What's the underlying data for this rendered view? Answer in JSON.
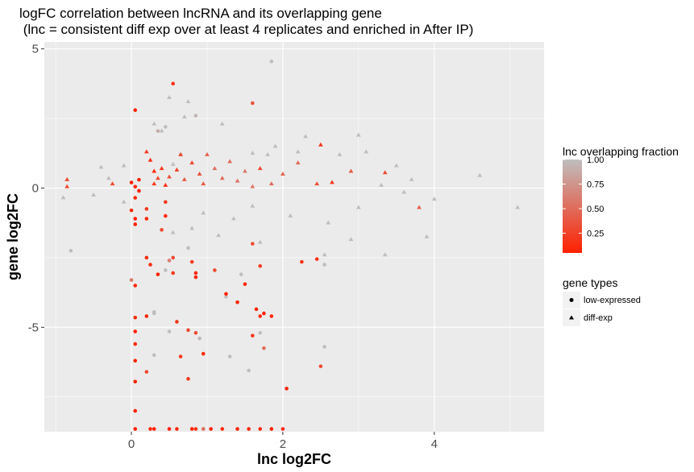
{
  "chart_data": {
    "type": "scatter",
    "title_line1": "logFC correlation between lncRNA and its overlapping gene",
    "title_line2": " (lnc = consistent diff exp over at least 4 replicates and enriched in After IP)",
    "xlabel": "lnc log2FC",
    "ylabel": "gene log2FC",
    "xlim": [
      -1.15,
      5.45
    ],
    "ylim": [
      -8.75,
      5.25
    ],
    "x_ticks": [
      0,
      2,
      4
    ],
    "y_ticks": [
      5,
      0,
      -5
    ],
    "grid": true,
    "color_legend": {
      "title": "lnc overlapping fraction",
      "ticks": [
        "1.00",
        "0.75",
        "0.50",
        "0.25"
      ],
      "tick_values": [
        1.0,
        0.75,
        0.5,
        0.25
      ],
      "range": [
        0.05,
        1.0
      ],
      "low_color": "#ff2000",
      "high_color": "#bebebe",
      "placement": "right"
    },
    "shape_legend": {
      "title": "gene types",
      "entries": [
        "low-expressed",
        "diff-exp"
      ]
    },
    "series": [
      {
        "name": "low-expressed",
        "shape": "circle",
        "points": [
          [
            0.05,
            2.8,
            0.05
          ],
          [
            0.55,
            3.75,
            0.15
          ],
          [
            1.6,
            3.05,
            0.35
          ],
          [
            1.85,
            4.55,
            1.0
          ],
          [
            0.35,
            2.05,
            0.9
          ],
          [
            0.45,
            2.2,
            1.0
          ],
          [
            0.85,
            2.6,
            0.95
          ],
          [
            0.1,
            0.3,
            0.05
          ],
          [
            0.0,
            0.2,
            0.05
          ],
          [
            0.05,
            0.05,
            0.1
          ],
          [
            0.1,
            -0.1,
            0.05
          ],
          [
            0.05,
            -0.35,
            0.1
          ],
          [
            0.0,
            -0.8,
            0.1
          ],
          [
            0.05,
            -1.1,
            0.05
          ],
          [
            0.05,
            -1.3,
            0.05
          ],
          [
            0.2,
            -0.75,
            0.2
          ],
          [
            0.2,
            -1.1,
            0.1
          ],
          [
            0.45,
            -0.5,
            0.2
          ],
          [
            0.45,
            -1.0,
            0.1
          ],
          [
            0.4,
            -1.5,
            0.3
          ],
          [
            0.2,
            -2.5,
            0.1
          ],
          [
            0.25,
            -2.75,
            0.15
          ],
          [
            0.35,
            -3.1,
            0.05
          ],
          [
            0.5,
            -2.6,
            0.6
          ],
          [
            0.55,
            -2.5,
            0.3
          ],
          [
            0.55,
            -3.05,
            0.2
          ],
          [
            0.8,
            -2.65,
            0.2
          ],
          [
            0.85,
            -3.05,
            0.1
          ],
          [
            0.85,
            -3.2,
            0.05
          ],
          [
            1.1,
            -2.95,
            0.3
          ],
          [
            1.25,
            -3.8,
            0.05
          ],
          [
            1.5,
            -3.45,
            0.1
          ],
          [
            1.4,
            -4.1,
            0.05
          ],
          [
            1.7,
            -2.8,
            0.2
          ],
          [
            1.6,
            -2.0,
            0.3
          ],
          [
            1.65,
            -4.35,
            0.05
          ],
          [
            1.7,
            -4.6,
            0.1
          ],
          [
            1.75,
            -4.5,
            0.05
          ],
          [
            1.85,
            -4.6,
            0.1
          ],
          [
            1.6,
            -5.3,
            0.2
          ],
          [
            1.75,
            -5.75,
            0.5
          ],
          [
            2.05,
            -7.2,
            0.05
          ],
          [
            2.25,
            -2.65,
            0.15
          ],
          [
            2.45,
            -2.55,
            0.15
          ],
          [
            2.55,
            -2.75,
            1.0
          ],
          [
            0.0,
            -3.3,
            0.6
          ],
          [
            0.05,
            -3.5,
            0.1
          ],
          [
            0.05,
            -4.65,
            0.1
          ],
          [
            0.05,
            -5.15,
            0.05
          ],
          [
            0.05,
            -5.6,
            0.1
          ],
          [
            0.05,
            -6.2,
            0.05
          ],
          [
            0.05,
            -6.95,
            0.05
          ],
          [
            0.05,
            -8.0,
            0.05
          ],
          [
            0.05,
            -8.65,
            0.05
          ],
          [
            0.2,
            -4.6,
            0.1
          ],
          [
            0.3,
            -4.5,
            1.0
          ],
          [
            0.2,
            -6.6,
            0.3
          ],
          [
            0.6,
            -4.8,
            0.2
          ],
          [
            0.65,
            -6.05,
            0.2
          ],
          [
            0.75,
            -6.85,
            0.2
          ],
          [
            0.75,
            -5.1,
            0.3
          ],
          [
            0.85,
            -5.2,
            0.3
          ],
          [
            0.95,
            -5.95,
            0.1
          ],
          [
            0.9,
            -5.4,
            0.95
          ],
          [
            2.5,
            -6.4,
            0.3
          ],
          [
            2.55,
            -5.7,
            1.0
          ],
          [
            0.25,
            -8.65,
            0.1
          ],
          [
            0.3,
            -8.65,
            0.05
          ],
          [
            0.5,
            -8.65,
            0.05
          ],
          [
            0.6,
            -8.65,
            0.1
          ],
          [
            0.8,
            -8.65,
            0.05
          ],
          [
            0.85,
            -8.65,
            0.15
          ],
          [
            1.05,
            -8.65,
            0.05
          ],
          [
            1.2,
            -8.65,
            0.1
          ],
          [
            1.4,
            -8.65,
            0.05
          ],
          [
            1.55,
            -8.65,
            0.1
          ],
          [
            1.7,
            -8.65,
            0.1
          ],
          [
            1.85,
            -8.65,
            0.05
          ],
          [
            2.0,
            -8.65,
            0.1
          ],
          [
            0.95,
            -8.65,
            0.5
          ],
          [
            -0.8,
            -2.25,
            1.0
          ],
          [
            0.45,
            -2.95,
            1.0
          ],
          [
            1.25,
            -3.9,
            1.0
          ],
          [
            0.3,
            -4.45,
            1.0
          ],
          [
            0.5,
            -5.15,
            1.0
          ],
          [
            0.3,
            -6.0,
            1.0
          ],
          [
            1.3,
            -6.05,
            1.0
          ],
          [
            1.55,
            -6.55,
            1.0
          ],
          [
            0.75,
            -2.15,
            1.0
          ],
          [
            1.45,
            -3.1,
            1.0
          ],
          [
            1.7,
            -5.2,
            1.0
          ],
          [
            0.65,
            1.2,
            1.0
          ]
        ]
      },
      {
        "name": "diff-exp",
        "shape": "triangle",
        "points": [
          [
            -0.85,
            0.3,
            0.3
          ],
          [
            -0.85,
            0.05,
            0.3
          ],
          [
            -0.9,
            -0.35,
            1.0
          ],
          [
            -0.5,
            -0.25,
            1.0
          ],
          [
            -0.4,
            0.75,
            1.0
          ],
          [
            -0.3,
            0.35,
            1.0
          ],
          [
            -0.25,
            0.15,
            0.3
          ],
          [
            -0.1,
            0.8,
            1.0
          ],
          [
            -0.1,
            -0.5,
            1.0
          ],
          [
            0.2,
            1.3,
            0.2
          ],
          [
            0.25,
            1.0,
            0.15
          ],
          [
            0.3,
            0.6,
            0.1
          ],
          [
            0.3,
            0.15,
            0.2
          ],
          [
            0.35,
            0.35,
            0.3
          ],
          [
            0.4,
            0.7,
            0.2
          ],
          [
            0.45,
            0.1,
            0.15
          ],
          [
            0.5,
            0.4,
            0.35
          ],
          [
            0.6,
            0.65,
            0.25
          ],
          [
            0.65,
            1.2,
            0.3
          ],
          [
            0.7,
            0.3,
            0.4
          ],
          [
            0.8,
            0.9,
            0.3
          ],
          [
            0.9,
            0.5,
            0.35
          ],
          [
            0.95,
            0.15,
            0.4
          ],
          [
            1.0,
            1.2,
            0.45
          ],
          [
            1.1,
            0.7,
            0.55
          ],
          [
            1.2,
            0.35,
            0.5
          ],
          [
            1.3,
            0.95,
            0.5
          ],
          [
            1.4,
            0.25,
            0.55
          ],
          [
            1.5,
            0.6,
            0.6
          ],
          [
            1.6,
            0.05,
            0.55
          ],
          [
            1.7,
            0.7,
            0.3
          ],
          [
            1.85,
            0.15,
            0.5
          ],
          [
            2.0,
            0.5,
            0.45
          ],
          [
            2.2,
            0.9,
            0.5
          ],
          [
            2.45,
            0.15,
            0.35
          ],
          [
            2.5,
            1.55,
            0.2
          ],
          [
            2.65,
            0.2,
            0.2
          ],
          [
            2.9,
            0.6,
            0.4
          ],
          [
            3.35,
            0.55,
            0.3
          ],
          [
            3.8,
            -0.7,
            0.45
          ],
          [
            0.3,
            2.3,
            1.0
          ],
          [
            0.7,
            2.55,
            1.0
          ],
          [
            1.2,
            2.3,
            1.0
          ],
          [
            0.75,
            3.1,
            1.0
          ],
          [
            0.5,
            3.25,
            1.0
          ],
          [
            0.4,
            2.05,
            1.0
          ],
          [
            1.6,
            1.25,
            1.0
          ],
          [
            1.9,
            1.5,
            1.0
          ],
          [
            2.3,
            1.85,
            1.0
          ],
          [
            3.0,
            1.9,
            1.0
          ],
          [
            2.2,
            1.3,
            1.0
          ],
          [
            2.75,
            1.2,
            1.0
          ],
          [
            3.1,
            1.3,
            1.0
          ],
          [
            3.5,
            0.8,
            1.0
          ],
          [
            4.0,
            -0.4,
            1.0
          ],
          [
            4.6,
            0.45,
            1.0
          ],
          [
            5.1,
            -0.7,
            1.0
          ],
          [
            3.35,
            -2.4,
            1.0
          ],
          [
            3.9,
            -1.75,
            1.0
          ],
          [
            2.55,
            -2.4,
            1.0
          ],
          [
            2.9,
            -1.85,
            1.0
          ],
          [
            1.7,
            -1.95,
            1.0
          ],
          [
            1.15,
            -1.7,
            1.0
          ],
          [
            0.8,
            -1.45,
            1.0
          ],
          [
            0.55,
            -1.6,
            1.0
          ],
          [
            2.1,
            -1.0,
            1.0
          ],
          [
            2.6,
            -1.25,
            1.0
          ],
          [
            3.0,
            -0.7,
            1.0
          ],
          [
            3.6,
            -0.15,
            1.0
          ],
          [
            3.7,
            0.3,
            1.0
          ],
          [
            3.3,
            0.1,
            1.0
          ],
          [
            1.35,
            -1.1,
            1.0
          ],
          [
            0.95,
            -0.9,
            1.0
          ],
          [
            1.8,
            1.2,
            1.0
          ],
          [
            0.55,
            0.85,
            1.0
          ],
          [
            1.6,
            -0.65,
            1.0
          ]
        ]
      }
    ]
  }
}
